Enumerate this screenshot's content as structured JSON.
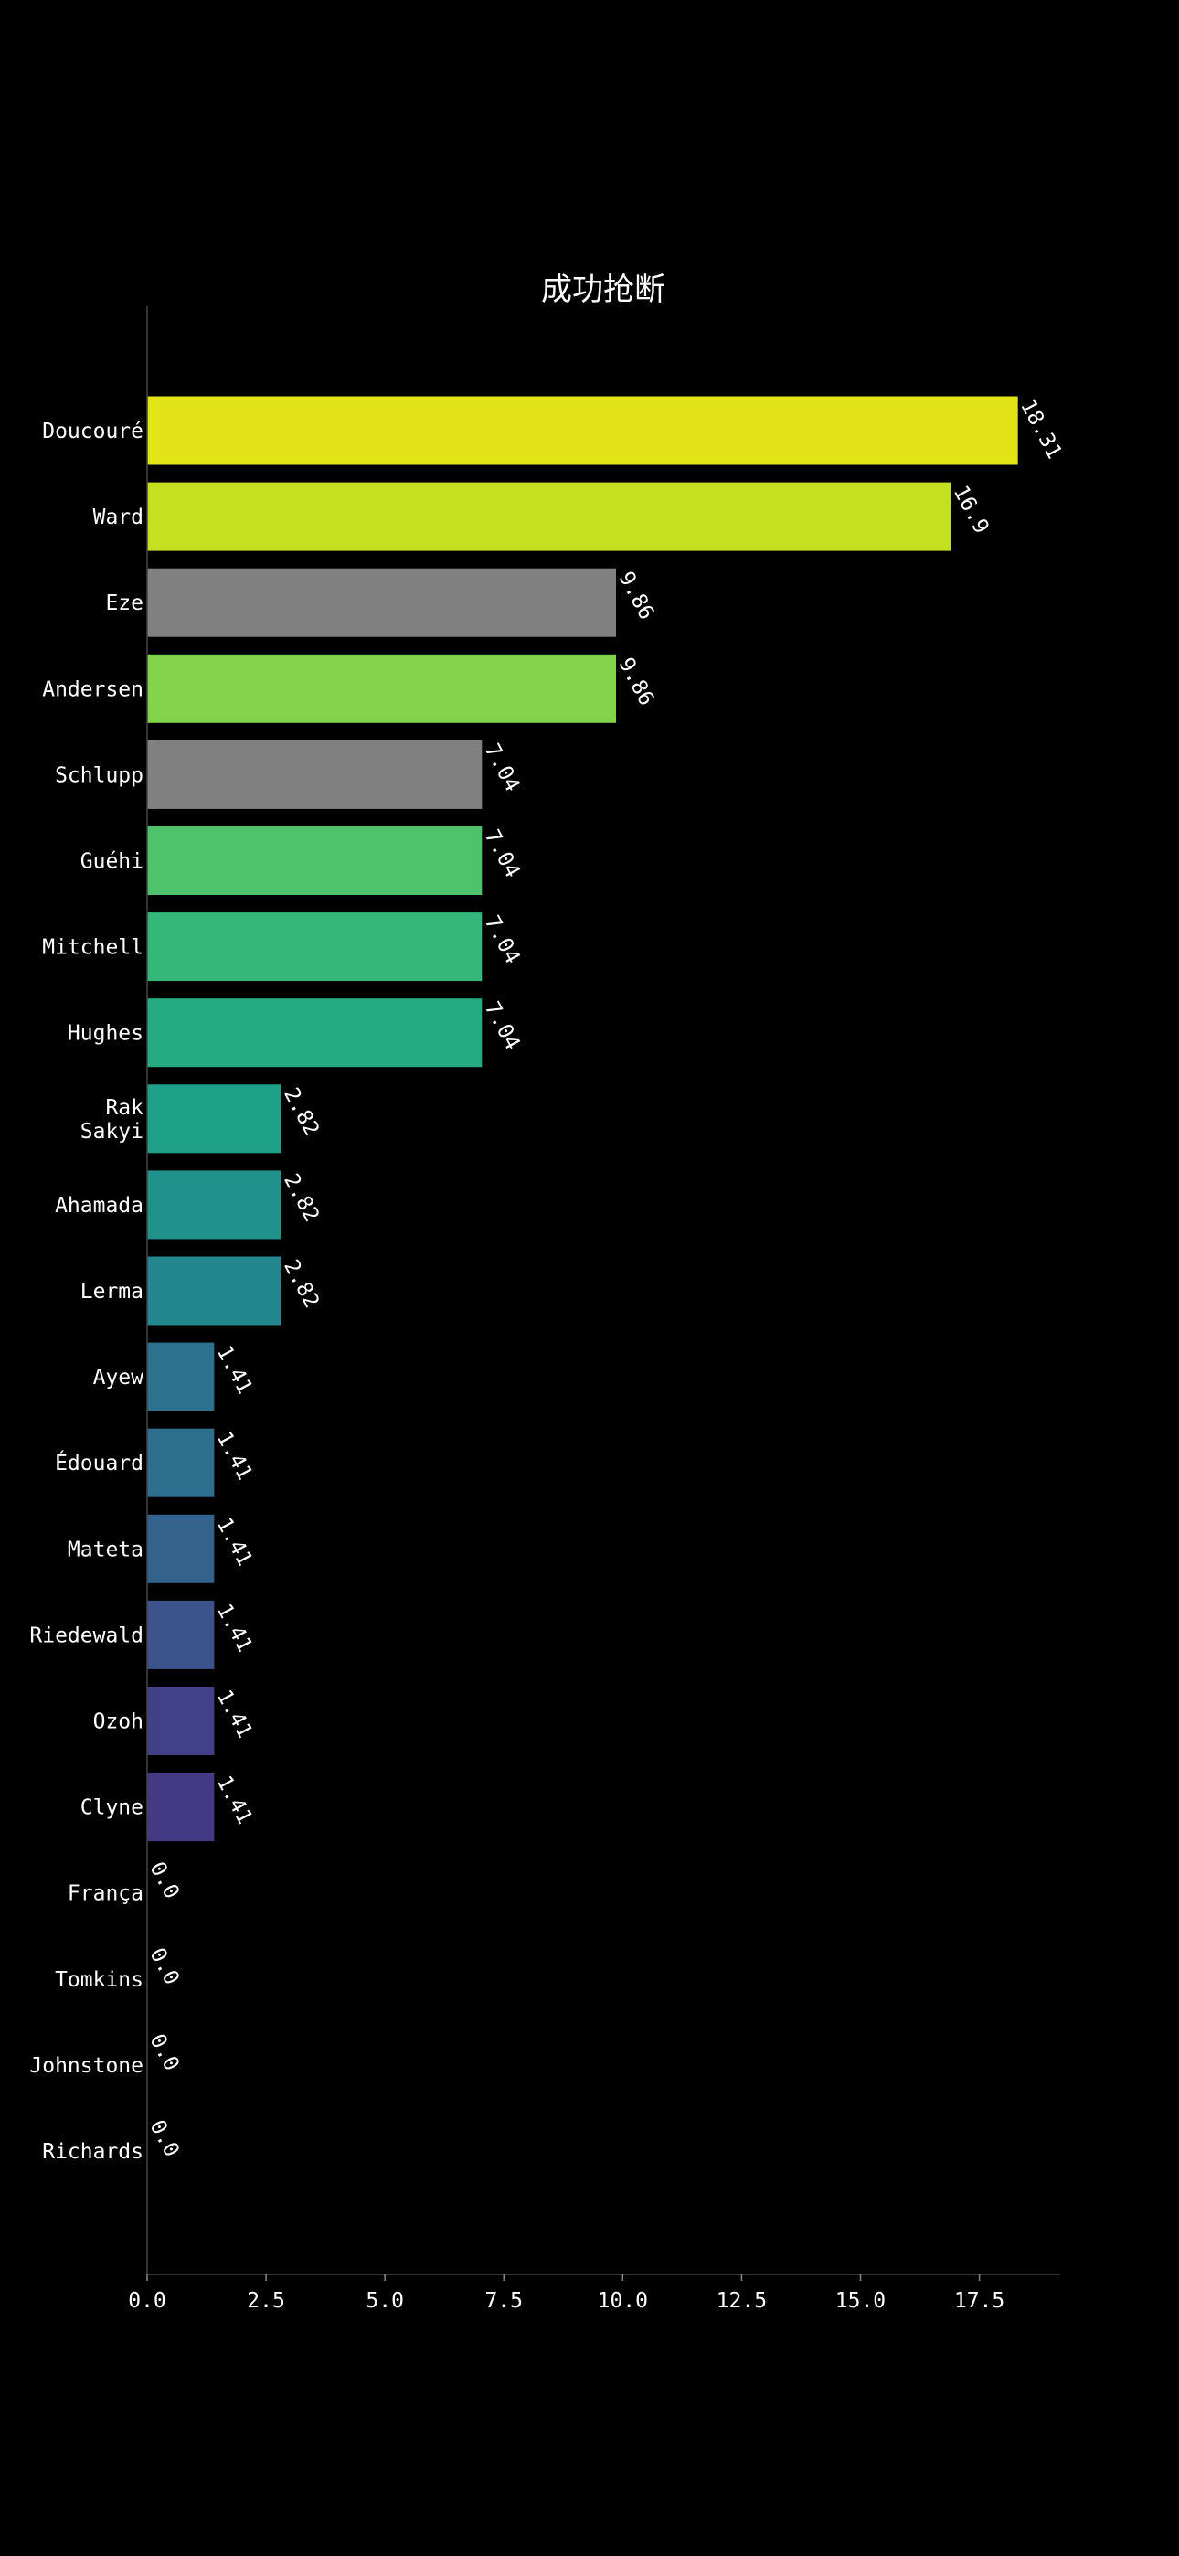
{
  "chart_data": {
    "type": "bar",
    "orientation": "horizontal",
    "title": "成功抢断",
    "xlabel": "",
    "ylabel": "",
    "xlim": [
      0,
      19.2
    ],
    "xticks": [
      0.0,
      2.5,
      5.0,
      7.5,
      10.0,
      12.5,
      15.0,
      17.5
    ],
    "xtick_labels": [
      "0.0",
      "2.5",
      "5.0",
      "7.5",
      "10.0",
      "12.5",
      "15.0",
      "17.5"
    ],
    "grid": false,
    "categories": [
      "Doucouré",
      "Ward",
      "Eze",
      "Andersen",
      "Schlupp",
      "Guéhi",
      "Mitchell",
      "Hughes",
      "Rak Sakyi",
      "Ahamada",
      "Lerma",
      "Ayew",
      "Édouard",
      "Mateta",
      "Riedewald",
      "Ozoh",
      "Clyne",
      "França",
      "Tomkins",
      "Johnstone",
      "Richards"
    ],
    "category_lines": [
      [
        "Doucouré"
      ],
      [
        "Ward"
      ],
      [
        "Eze"
      ],
      [
        "Andersen"
      ],
      [
        "Schlupp"
      ],
      [
        "Guéhi"
      ],
      [
        "Mitchell"
      ],
      [
        "Hughes"
      ],
      [
        "Rak",
        "Sakyi"
      ],
      [
        "Ahamada"
      ],
      [
        "Lerma"
      ],
      [
        "Ayew"
      ],
      [
        "Édouard"
      ],
      [
        "Mateta"
      ],
      [
        "Riedewald"
      ],
      [
        "Ozoh"
      ],
      [
        "Clyne"
      ],
      [
        "França"
      ],
      [
        "Tomkins"
      ],
      [
        "Johnstone"
      ],
      [
        "Richards"
      ]
    ],
    "values": [
      18.31,
      16.9,
      9.86,
      9.86,
      7.04,
      7.04,
      7.04,
      7.04,
      2.82,
      2.82,
      2.82,
      1.41,
      1.41,
      1.41,
      1.41,
      1.41,
      1.41,
      0.0,
      0.0,
      0.0,
      0.0
    ],
    "value_labels": [
      "18.31",
      "16.9",
      "9.86",
      "9.86",
      "7.04",
      "7.04",
      "7.04",
      "7.04",
      "2.82",
      "2.82",
      "2.82",
      "1.41",
      "1.41",
      "1.41",
      "1.41",
      "1.41",
      "1.41",
      "0.0",
      "0.0",
      "0.0",
      "0.0"
    ],
    "colors": [
      "#e2e418",
      "#c5e021",
      "#808080",
      "#84d44b",
      "#808080",
      "#4ec36b",
      "#35b779",
      "#25ab82",
      "#1fa088",
      "#21918c",
      "#24868e",
      "#2c728e",
      "#2e6e8e",
      "#33638d",
      "#3b528b",
      "#424086",
      "#443983",
      "#481f70",
      "#46085c",
      "#460a5d",
      "#440154"
    ]
  }
}
